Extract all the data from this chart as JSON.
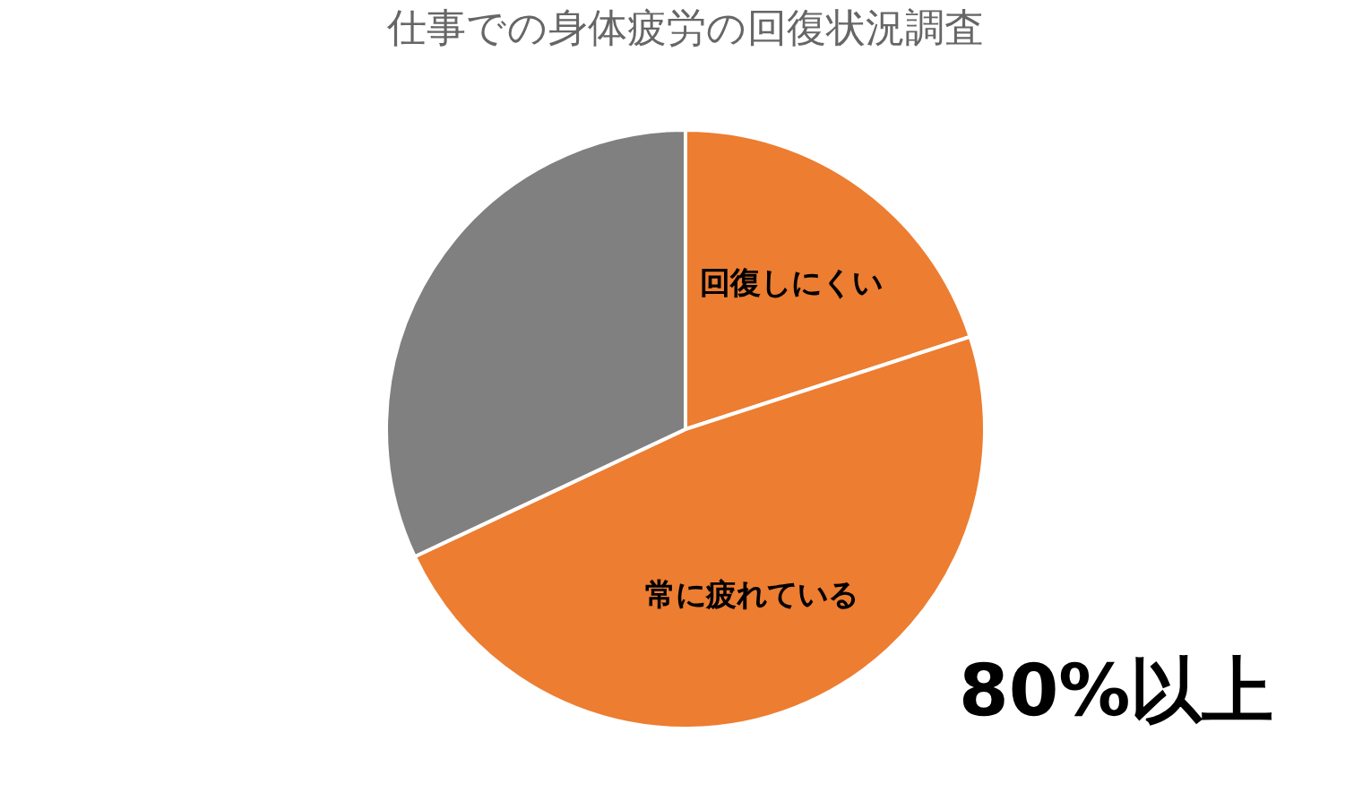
{
  "chart_data": {
    "type": "pie",
    "title": "仕事での身体疲労の回復状況調査",
    "categories": [
      "回復しにくい",
      "常に疲れている",
      null
    ],
    "values": [
      20,
      48,
      32
    ],
    "colors": [
      "#ed7d31",
      "#ed7d31",
      "#808080"
    ],
    "annotations": [
      "80%以上"
    ]
  }
}
